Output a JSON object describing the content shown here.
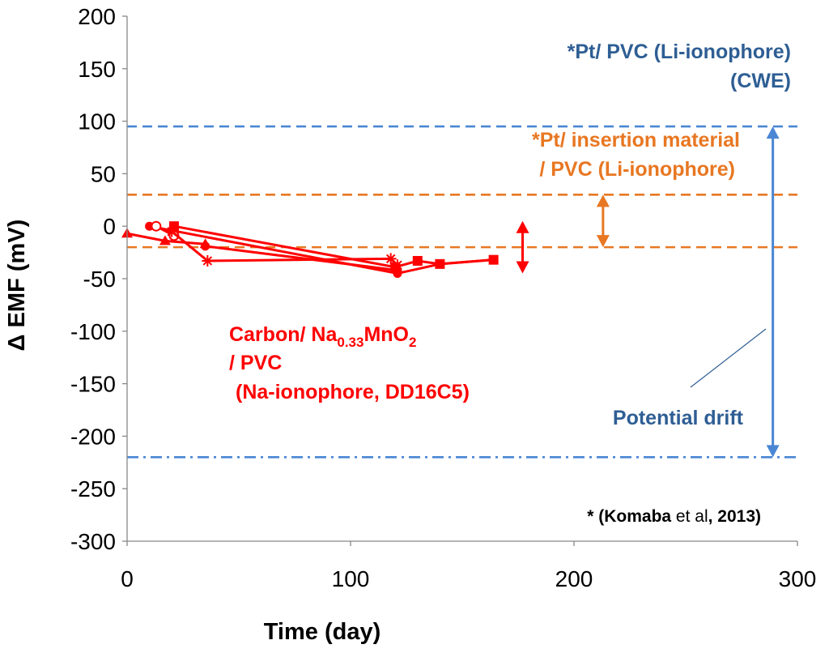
{
  "chart_data": {
    "type": "line",
    "xlabel": "Time (day)",
    "ylabel": "Δ EMF   (mV)",
    "xlim": [
      0,
      300
    ],
    "ylim": [
      -300,
      200
    ],
    "x_ticks": [
      "0",
      "100",
      "200",
      "300"
    ],
    "y_ticks": [
      "200",
      "150",
      "100",
      "50",
      "0",
      "-50",
      "-100",
      "-150",
      "-200",
      "-250",
      "-300"
    ],
    "grid": false,
    "series": [
      {
        "name": "triangle",
        "marker": "triangle",
        "x": [
          0,
          17,
          35
        ],
        "y": [
          -7,
          -14,
          -17
        ]
      },
      {
        "name": "circle",
        "marker": "circle",
        "x": [
          10,
          121,
          140,
          164
        ],
        "y": [
          0,
          -45,
          -36,
          -32
        ]
      },
      {
        "name": "open-circle",
        "marker": "open-circle",
        "x": [
          13,
          21
        ],
        "y": [
          0,
          -9
        ]
      },
      {
        "name": "asterisk",
        "marker": "asterisk",
        "x": [
          20,
          36,
          118,
          121
        ],
        "y": [
          -5,
          -33,
          -31,
          -37
        ]
      },
      {
        "name": "square",
        "marker": "square",
        "x": [
          21,
          120,
          130,
          140,
          164
        ],
        "y": [
          0,
          -39,
          -33,
          -36,
          -32
        ]
      },
      {
        "name": "filled-circle-2",
        "marker": "circle",
        "x": [
          35,
          121
        ],
        "y": [
          -19,
          -42
        ]
      }
    ],
    "reference_lines": [
      {
        "name": "cwe-upper",
        "y": 95,
        "style": "dashed",
        "color": "#4a86d4"
      },
      {
        "name": "cwe-lower",
        "y": -220,
        "style": "dashdot",
        "color": "#4a86d4"
      },
      {
        "name": "insertion-upper",
        "y": 30,
        "style": "dashed",
        "color": "#e87722"
      },
      {
        "name": "insertion-lower",
        "y": -20,
        "style": "dashed",
        "color": "#e87722"
      }
    ],
    "range_arrows": [
      {
        "name": "red-arrow",
        "x": 177,
        "y_from": 5,
        "y_to": -45,
        "color": "#ff0000"
      },
      {
        "name": "orange-arrow",
        "x": 213,
        "y_from": 30,
        "y_to": -20,
        "color": "#e87722"
      },
      {
        "name": "blue-arrow",
        "x": 289,
        "y_from": 95,
        "y_to": -220,
        "color": "#4a86d4"
      }
    ],
    "annotations": {
      "cwe_line1": "*Pt/ PVC (Li-ionophore)",
      "cwe_line2": "(CWE)",
      "insertion_line1": "*Pt/ insertion material",
      "insertion_line2": "/  PVC (Li-ionophore)",
      "carbon_prefix": "Carbon/ Na",
      "carbon_sub1": "0.33",
      "carbon_mid": "MnO",
      "carbon_sub2": "2",
      "carbon_line2": "/ PVC",
      "carbon_line3": "(Na-ionophore, DD16C5)",
      "drift_label": "Potential drift",
      "cite_star": "* (",
      "cite_author": "Komaba",
      "cite_etal": " et al",
      "cite_year": ", 2013)"
    },
    "colors": {
      "data": "#ff0000",
      "cwe": "#4a86d4",
      "cwe_text": "#2e5e94",
      "insertion": "#e87722"
    }
  }
}
